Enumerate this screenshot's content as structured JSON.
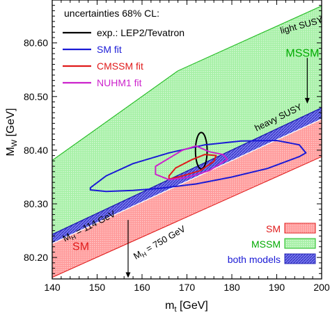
{
  "chart_data": {
    "type": "area",
    "title": "",
    "xlabel": "m_t [GeV]",
    "ylabel": "M_W [GeV]",
    "xlabel_main": "m",
    "xlabel_sub": "t",
    "xlabel_unit": " [GeV]",
    "ylabel_main": "M",
    "ylabel_sub": "W",
    "ylabel_unit": " [GeV]",
    "xlim": [
      140,
      200
    ],
    "ylim": [
      80.16,
      80.68
    ],
    "xticks": [
      140,
      150,
      160,
      170,
      180,
      190,
      200
    ],
    "yticks": [
      80.2,
      80.3,
      80.4,
      80.5,
      80.6
    ],
    "ytick_labels": [
      "80.20",
      "80.30",
      "80.40",
      "80.50",
      "80.60"
    ],
    "legend_title": "uncertainties 68% CL:",
    "legend_placement": "top-left",
    "series": [
      {
        "name": "exp.: LEP2/Tevatron",
        "color": "#000000",
        "shape": "ellipse",
        "center": [
          173.2,
          80.399
        ],
        "half_width": 1.3,
        "half_height": 0.034
      },
      {
        "name": "SM fit",
        "color": "#1a1ad6",
        "shape": "contour",
        "points": [
          [
            148.5,
            80.326
          ],
          [
            152,
            80.323
          ],
          [
            158,
            80.325
          ],
          [
            164,
            80.329
          ],
          [
            172,
            80.337
          ],
          [
            180,
            80.35
          ],
          [
            188,
            80.366
          ],
          [
            195,
            80.388
          ],
          [
            196.5,
            80.395
          ],
          [
            195,
            80.41
          ],
          [
            190,
            80.418
          ],
          [
            182,
            80.417
          ],
          [
            174,
            80.41
          ],
          [
            166,
            80.395
          ],
          [
            158,
            80.375
          ],
          [
            152,
            80.352
          ],
          [
            148.5,
            80.33
          ]
        ]
      },
      {
        "name": "CMSSM fit",
        "color": "#e01a1a",
        "shape": "contour",
        "points": [
          [
            166,
            80.346
          ],
          [
            169,
            80.352
          ],
          [
            173,
            80.362
          ],
          [
            176,
            80.379
          ],
          [
            176.5,
            80.39
          ],
          [
            174,
            80.392
          ],
          [
            171,
            80.382
          ],
          [
            167.5,
            80.367
          ],
          [
            166,
            80.352
          ]
        ]
      },
      {
        "name": "NUHM1 fit",
        "color": "#cc22cc",
        "shape": "contour",
        "points": [
          [
            163,
            80.355
          ],
          [
            166,
            80.345
          ],
          [
            170,
            80.349
          ],
          [
            175,
            80.362
          ],
          [
            179,
            80.383
          ],
          [
            178,
            80.392
          ],
          [
            175,
            80.397
          ],
          [
            172,
            80.408
          ],
          [
            169,
            80.4
          ],
          [
            166,
            80.385
          ],
          [
            163,
            80.37
          ]
        ]
      }
    ],
    "regions": [
      {
        "name": "SM",
        "color": "#ff9a9a",
        "pattern": "dots"
      },
      {
        "name": "MSSM",
        "color": "#a6f0a6",
        "pattern": "dots"
      },
      {
        "name": "both models",
        "color": "#7777ee",
        "pattern": "hatch"
      }
    ],
    "region_bounds": {
      "sm_lower": [
        [
          140,
          80.163
        ],
        [
          200,
          80.388
        ]
      ],
      "sm_upper": [
        [
          140,
          80.226
        ],
        [
          200,
          80.458
        ]
      ],
      "blue_upper": [
        [
          140,
          80.243
        ],
        [
          200,
          80.479
        ]
      ],
      "mssm_upper": [
        [
          140,
          80.381
        ],
        [
          168,
          80.548
        ],
        [
          200,
          80.669
        ]
      ]
    },
    "annotations": [
      {
        "text": "MSSM",
        "x": 192,
        "y": 80.574,
        "color": "#00aa00",
        "angle": 0
      },
      {
        "text": "SM",
        "x": 144.5,
        "y": 80.214,
        "color": "#e01a1a",
        "angle": 0
      },
      {
        "text": "light SUSY",
        "x": 191,
        "y": 80.617,
        "color": "#000000",
        "angle": -15
      },
      {
        "text": "heavy SUSY",
        "x": 185.5,
        "y": 80.435,
        "color": "#000000",
        "angle": -26
      },
      {
        "text": "M",
        "sub": "H",
        "rest": " = 114 GeV",
        "x": 142.8,
        "y": 80.229,
        "color": "#000000",
        "angle": -27
      },
      {
        "text": "M",
        "sub": "H",
        "rest": " = 750 GeV",
        "x": 158.6,
        "y": 80.196,
        "color": "#000000",
        "angle": -30
      }
    ],
    "arrows": [
      {
        "x": 196.8,
        "y_from": 80.572,
        "y_to": 80.487
      },
      {
        "x": 156.9,
        "y_from": 80.27,
        "y_to": 80.162
      }
    ]
  }
}
